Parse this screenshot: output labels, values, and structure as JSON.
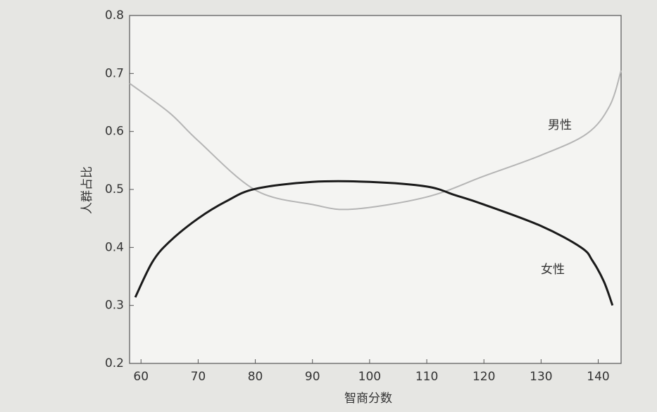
{
  "chart_data": {
    "type": "line",
    "x_label": "智商分数",
    "y_label": "人群占比",
    "xlim": [
      58,
      144
    ],
    "ylim": [
      0.2,
      0.8
    ],
    "xticks": [
      60,
      70,
      80,
      90,
      100,
      110,
      120,
      130,
      140
    ],
    "yticks": [
      0.2,
      0.3,
      0.4,
      0.5,
      0.6,
      0.7,
      0.8
    ],
    "grid": false,
    "series": [
      {
        "name": "男性",
        "color": "#b5b5b5",
        "x": [
          58,
          65,
          70,
          80,
          90,
          97,
          110,
          120,
          130,
          138,
          142,
          144
        ],
        "values": [
          0.683,
          0.632,
          0.584,
          0.499,
          0.474,
          0.466,
          0.487,
          0.523,
          0.559,
          0.596,
          0.644,
          0.705
        ]
      },
      {
        "name": "女性",
        "color": "#1a1a1a",
        "x": [
          59,
          62,
          65,
          70,
          75,
          80,
          90,
          100,
          110,
          115,
          120,
          130,
          137,
          139,
          141,
          142.5
        ],
        "values": [
          0.314,
          0.375,
          0.41,
          0.45,
          0.48,
          0.501,
          0.513,
          0.513,
          0.505,
          0.49,
          0.474,
          0.437,
          0.4,
          0.377,
          0.341,
          0.3
        ]
      }
    ]
  }
}
